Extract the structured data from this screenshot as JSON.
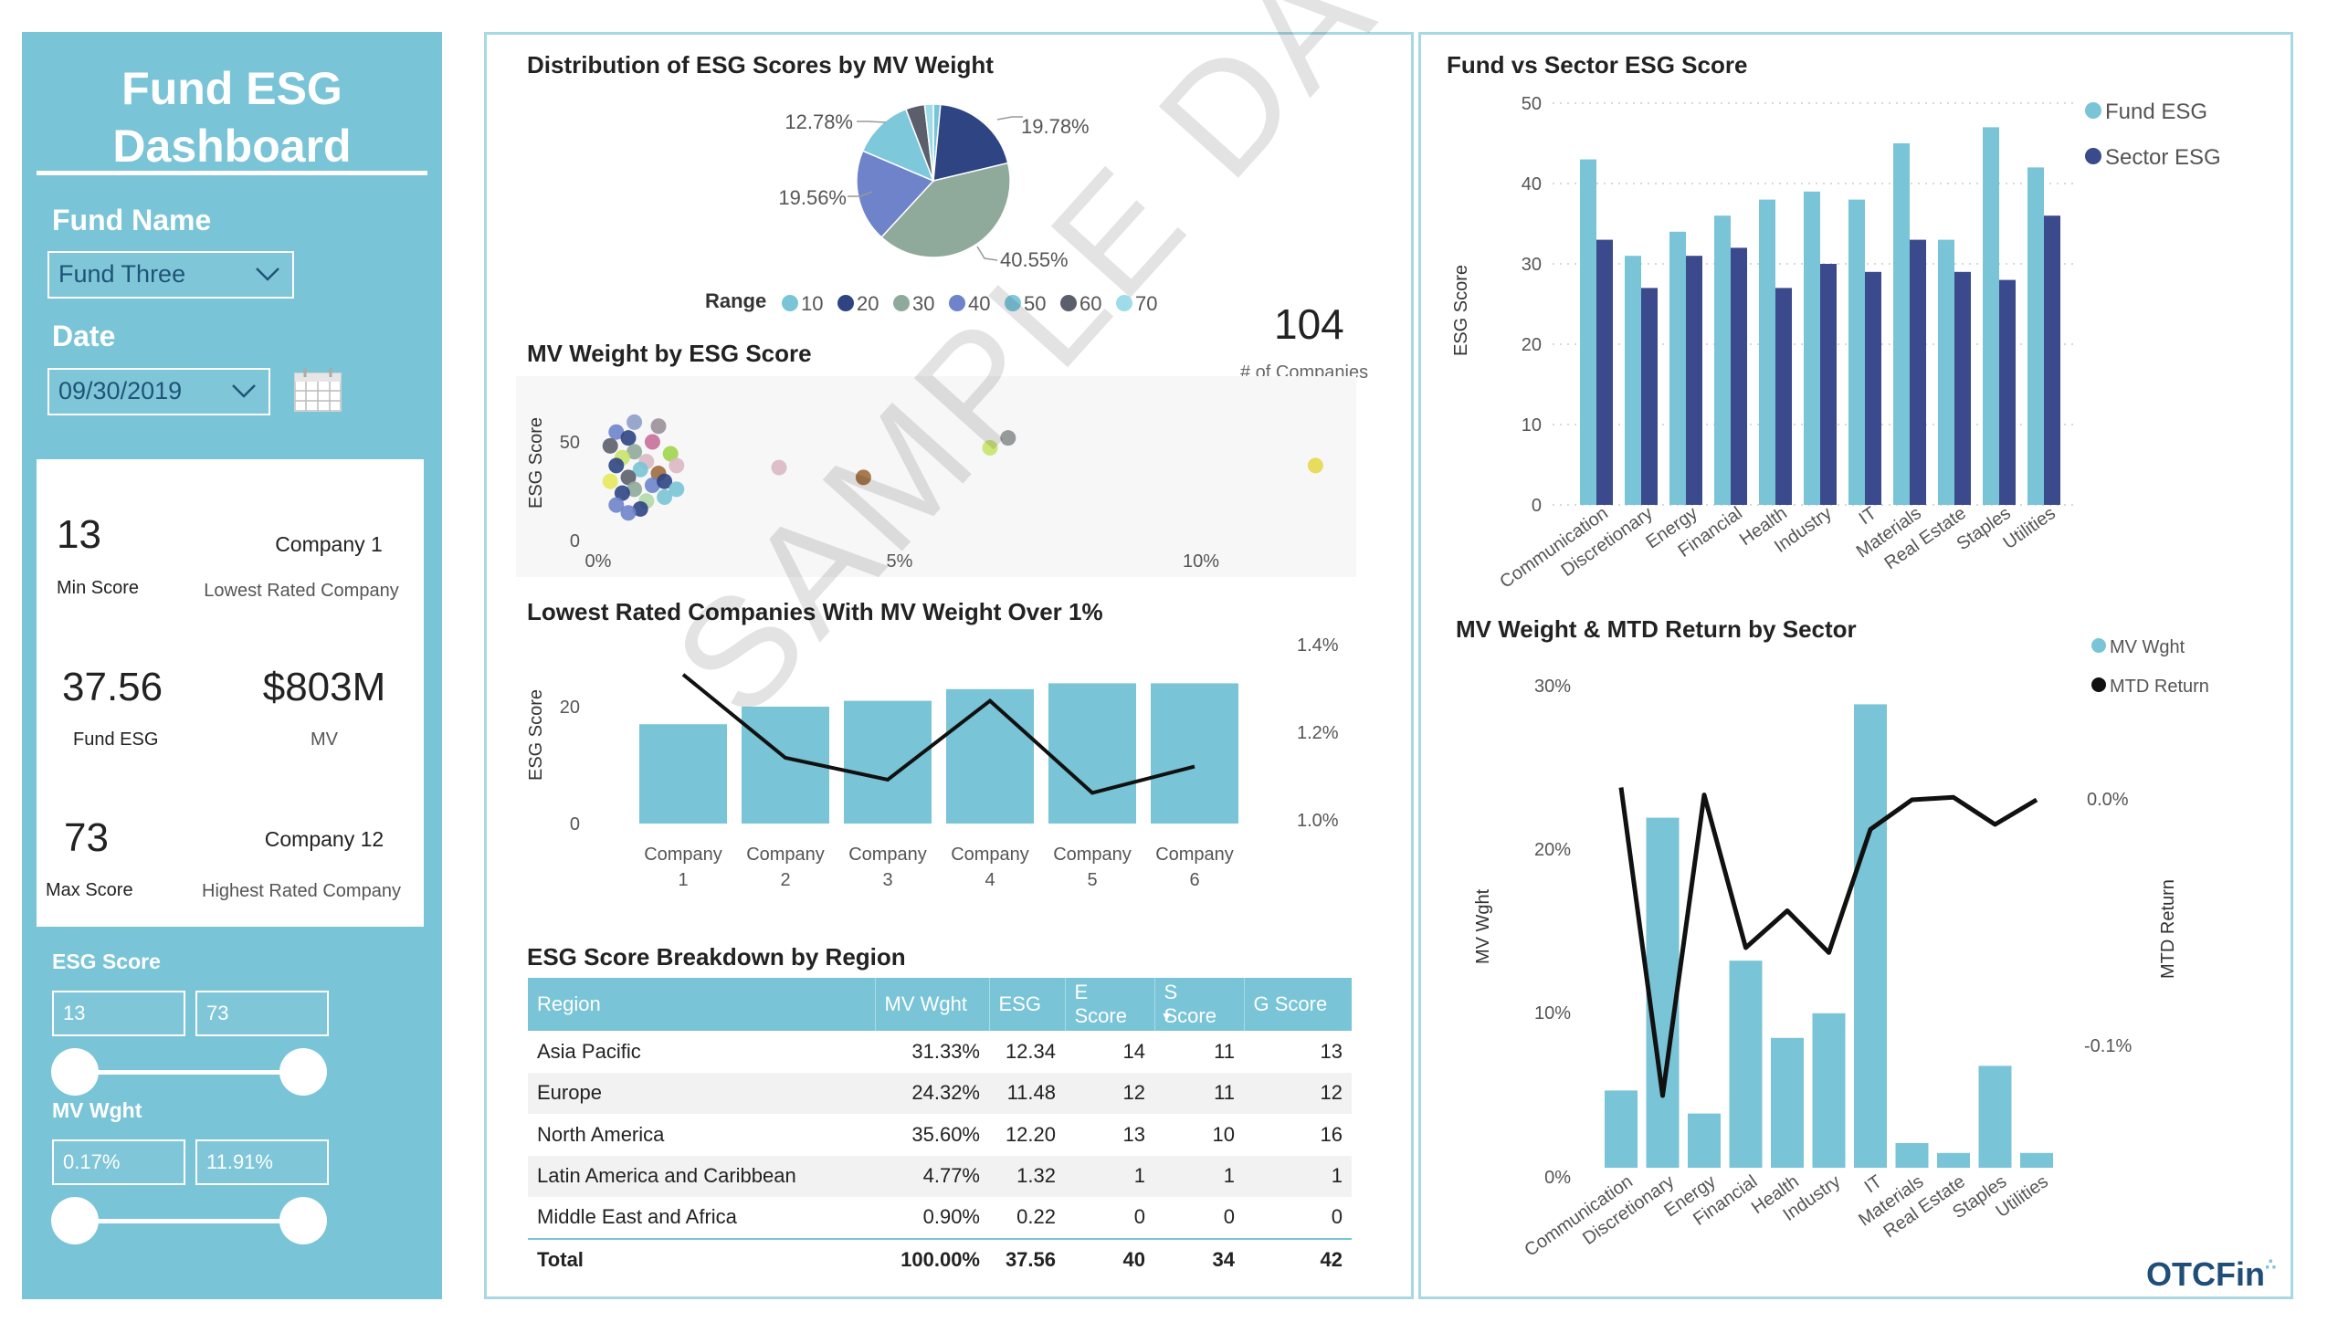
{
  "sidebar": {
    "title_line1": "Fund ESG",
    "title_line2": "Dashboard",
    "fund_name_label": "Fund Name",
    "fund_name_value": "Fund Three",
    "date_label": "Date",
    "date_value": "09/30/2019",
    "esg_score_label": "ESG Score",
    "esg_min": "13",
    "esg_max": "73",
    "mv_label": "MV Wght",
    "mv_min": "0.17%",
    "mv_max": "11.91%"
  },
  "cards": {
    "min_score": "13",
    "min_score_label": "Min Score",
    "lowest_company": "Company 1",
    "lowest_label": "Lowest Rated Company",
    "fund_esg": "37.56",
    "fund_esg_label": "Fund ESG",
    "mv": "$803M",
    "mv_label": "MV",
    "max_score": "73",
    "max_score_label": "Max Score",
    "highest_company": "Company 12",
    "highest_label": "Highest Rated Company"
  },
  "pie": {
    "title": "Distribution of ESG Scores by MV Weight",
    "legend_title": "Range",
    "legend": [
      {
        "label": "10",
        "color": "#79c4d6"
      },
      {
        "label": "20",
        "color": "#2e4483"
      },
      {
        "label": "30",
        "color": "#8faa9a"
      },
      {
        "label": "40",
        "color": "#6e83c9"
      },
      {
        "label": "50",
        "color": "#7ec8dc"
      },
      {
        "label": "60",
        "color": "#5b5f6b"
      },
      {
        "label": "70",
        "color": "#9fdbe8"
      }
    ],
    "labels": {
      "a": "19.78%",
      "b": "40.55%",
      "c": "19.56%",
      "d": "12.78%"
    }
  },
  "companies_kpi": {
    "value": "104",
    "label": "# of Companies"
  },
  "scatter": {
    "title": "MV Weight by ESG Score",
    "ylabel": "ESG Score",
    "yticks": [
      "50",
      "0"
    ],
    "xticks": [
      "0%",
      "5%",
      "10%"
    ]
  },
  "combo": {
    "title": "Lowest Rated Companies With MV Weight Over 1%",
    "ylabel": "ESG Score",
    "yticks": [
      "20",
      "0"
    ],
    "y2ticks": [
      "1.4%",
      "1.2%",
      "1.0%"
    ],
    "categories": [
      [
        "Company",
        "1"
      ],
      [
        "Company",
        "2"
      ],
      [
        "Company",
        "3"
      ],
      [
        "Company",
        "4"
      ],
      [
        "Company",
        "5"
      ],
      [
        "Company",
        "6"
      ]
    ]
  },
  "table": {
    "title": "ESG Score Breakdown by Region",
    "headers": [
      "Region",
      "MV Wght",
      "ESG",
      "E Score",
      "S Score",
      "G Score"
    ],
    "rows": [
      [
        "Asia Pacific",
        "31.33%",
        "12.34",
        "14",
        "11",
        "13"
      ],
      [
        "Europe",
        "24.32%",
        "11.48",
        "12",
        "11",
        "12"
      ],
      [
        "North America",
        "35.60%",
        "12.20",
        "13",
        "10",
        "16"
      ],
      [
        "Latin America and Caribbean",
        "4.77%",
        "1.32",
        "1",
        "1",
        "1"
      ],
      [
        "Middle East and Africa",
        "0.90%",
        "0.22",
        "0",
        "0",
        "0"
      ]
    ],
    "total": [
      "Total",
      "100.00%",
      "37.56",
      "40",
      "34",
      "42"
    ]
  },
  "fund_sector": {
    "title": "Fund vs Sector ESG Score",
    "ylabel": "ESG Score",
    "legend": [
      "Fund ESG",
      "Sector ESG"
    ],
    "yticks": [
      "50",
      "40",
      "30",
      "20",
      "10",
      "0"
    ]
  },
  "mv_mtd": {
    "title": "MV Weight & MTD Return by Sector",
    "ylabel": "MV Wght",
    "y2label": "MTD Return",
    "legend": [
      "MV Wght",
      "MTD Return"
    ],
    "yticks": [
      "30%",
      "20%",
      "10%",
      "0%"
    ],
    "y2ticks": [
      "0.0%",
      "-0.1%"
    ]
  },
  "watermark": "SAMPLE DATA",
  "logo": "OTCFin",
  "colors": {
    "accent": "#79c4d6",
    "navy": "#3a4a8c",
    "line": "#111111"
  },
  "chart_data": [
    {
      "type": "pie",
      "title": "Distribution of ESG Scores by MV Weight",
      "categories": [
        "10",
        "20",
        "30",
        "40",
        "50",
        "60",
        "70"
      ],
      "values": [
        1.5,
        19.78,
        40.55,
        19.56,
        12.78,
        4.0,
        1.83
      ]
    },
    {
      "type": "scatter",
      "title": "MV Weight by ESG Score",
      "xlabel": "",
      "ylabel": "ESG Score",
      "xlim": [
        0,
        12.5
      ],
      "ylim": [
        0,
        65
      ],
      "points": [
        {
          "x": 0.3,
          "y": 55,
          "c": "#6e83c9"
        },
        {
          "x": 0.5,
          "y": 52,
          "c": "#2e4483"
        },
        {
          "x": 0.2,
          "y": 48,
          "c": "#5b5f6b"
        },
        {
          "x": 0.6,
          "y": 45,
          "c": "#8faa9a"
        },
        {
          "x": 0.4,
          "y": 42,
          "c": "#c8e36b"
        },
        {
          "x": 0.8,
          "y": 40,
          "c": "#d9b8c4"
        },
        {
          "x": 0.3,
          "y": 38,
          "c": "#2e4483"
        },
        {
          "x": 0.7,
          "y": 36,
          "c": "#79c4d6"
        },
        {
          "x": 1.0,
          "y": 34,
          "c": "#a06c3c"
        },
        {
          "x": 0.5,
          "y": 32,
          "c": "#5b5f6b"
        },
        {
          "x": 0.2,
          "y": 30,
          "c": "#e5e85a"
        },
        {
          "x": 0.9,
          "y": 28,
          "c": "#6e83c9"
        },
        {
          "x": 0.6,
          "y": 26,
          "c": "#8faa9a"
        },
        {
          "x": 0.4,
          "y": 24,
          "c": "#2e4483"
        },
        {
          "x": 1.1,
          "y": 22,
          "c": "#79c4d6"
        },
        {
          "x": 0.8,
          "y": 20,
          "c": "#b2d8a5"
        },
        {
          "x": 0.3,
          "y": 18,
          "c": "#6e83c9"
        },
        {
          "x": 0.7,
          "y": 16,
          "c": "#2e4483"
        },
        {
          "x": 1.2,
          "y": 44,
          "c": "#a0d54a"
        },
        {
          "x": 1.3,
          "y": 38,
          "c": "#d9b8c4"
        },
        {
          "x": 0.9,
          "y": 50,
          "c": "#c86e9a"
        },
        {
          "x": 1.0,
          "y": 58,
          "c": "#9a8f9a"
        },
        {
          "x": 0.6,
          "y": 60,
          "c": "#8c9ec7"
        },
        {
          "x": 1.1,
          "y": 30,
          "c": "#2e4483"
        },
        {
          "x": 0.5,
          "y": 14,
          "c": "#6e83c9"
        },
        {
          "x": 1.3,
          "y": 26,
          "c": "#79c4d6"
        },
        {
          "x": 3.0,
          "y": 37,
          "c": "#d9b8c4"
        },
        {
          "x": 4.4,
          "y": 32,
          "c": "#a06c3c"
        },
        {
          "x": 6.5,
          "y": 47,
          "c": "#c8e36b"
        },
        {
          "x": 6.8,
          "y": 52,
          "c": "#8a8f8f"
        },
        {
          "x": 11.9,
          "y": 38,
          "c": "#e5d84a"
        }
      ]
    },
    {
      "type": "bar",
      "title": "Lowest Rated Companies With MV Weight Over 1%",
      "categories": [
        "Company 1",
        "Company 2",
        "Company 3",
        "Company 4",
        "Company 5",
        "Company 6"
      ],
      "ylabel": "ESG Score",
      "ylim": [
        0,
        30
      ],
      "values": [
        17,
        20,
        21,
        23,
        24,
        24
      ],
      "line_series": {
        "name": "MV Weight",
        "ylim": [
          1.0,
          1.4
        ],
        "values": [
          1.34,
          1.15,
          1.1,
          1.28,
          1.07,
          1.13
        ]
      }
    },
    {
      "type": "bar",
      "title": "Fund vs Sector ESG Score",
      "categories": [
        "Communication",
        "Discretionary",
        "Energy",
        "Financial",
        "Health",
        "Industry",
        "IT",
        "Materials",
        "Real Estate",
        "Staples",
        "Utilities"
      ],
      "ylabel": "ESG Score",
      "ylim": [
        0,
        50
      ],
      "series": [
        {
          "name": "Fund ESG",
          "values": [
            43,
            31,
            34,
            36,
            38,
            39,
            38,
            45,
            33,
            47,
            42
          ]
        },
        {
          "name": "Sector ESG",
          "values": [
            33,
            27,
            31,
            32,
            27,
            30,
            29,
            33,
            29,
            28,
            36
          ]
        }
      ]
    },
    {
      "type": "bar",
      "title": "MV Weight & MTD Return by Sector",
      "categories": [
        "Communication",
        "Discretionary",
        "Energy",
        "Financial",
        "Health",
        "Industry",
        "IT",
        "Materials",
        "Real Estate",
        "Staples",
        "Utilities"
      ],
      "ylabel": "MV Wght",
      "ylim": [
        0,
        30
      ],
      "values": [
        4.7,
        21.3,
        3.3,
        12.6,
        7.9,
        9.4,
        28.2,
        1.5,
        0.9,
        6.2,
        0.9
      ],
      "line_series": {
        "name": "MTD Return",
        "ylim": [
          -0.17,
          0.03
        ],
        "values": [
          0.005,
          -0.12,
          0.002,
          -0.06,
          -0.045,
          -0.062,
          -0.012,
          0.0,
          0.001,
          -0.01,
          0.0
        ]
      }
    }
  ]
}
